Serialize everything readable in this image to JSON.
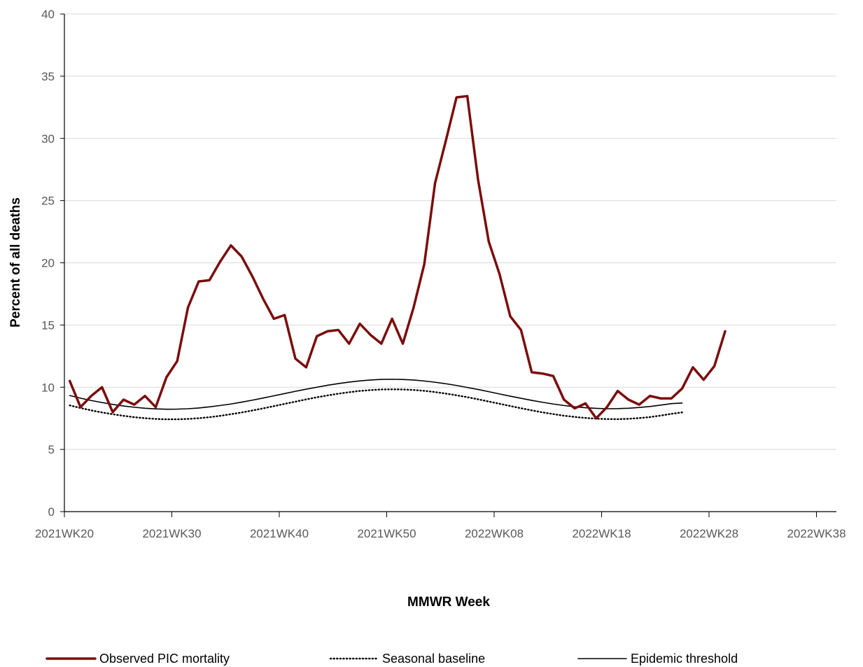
{
  "chart_data": {
    "type": "line",
    "title": "",
    "xlabel": "MMWR Week",
    "ylabel": "Percent of all deaths",
    "x_tick_labels": [
      "2021WK20",
      "2021WK30",
      "2021WK40",
      "2021WK50",
      "2022WK08",
      "2022WK18",
      "2022WK28",
      "2022WK38"
    ],
    "y_ticks": [
      0,
      5,
      10,
      15,
      20,
      25,
      30,
      35,
      40
    ],
    "ylim": [
      0,
      40
    ],
    "grid": "horizontal",
    "legend_position": "bottom",
    "series": [
      {
        "name": "Observed PIC mortality",
        "color": "#7B0C0C",
        "style": "solid-thick",
        "week_index_start": 0.5,
        "values": [
          10.5,
          8.4,
          9.3,
          10.0,
          8.0,
          9.0,
          8.6,
          9.3,
          8.4,
          10.8,
          12.1,
          16.4,
          18.5,
          18.6,
          20.1,
          21.4,
          20.5,
          18.9,
          17.1,
          15.5,
          15.8,
          12.3,
          11.6,
          14.1,
          14.5,
          14.6,
          13.5,
          15.1,
          14.2,
          13.5,
          15.5,
          13.5,
          16.4,
          19.9,
          26.4,
          29.8,
          33.3,
          33.4,
          26.7,
          21.7,
          19.1,
          15.7,
          14.6,
          11.2,
          11.1,
          10.9,
          9.0,
          8.3,
          8.7,
          7.5,
          8.4,
          9.7,
          9.0,
          8.6,
          9.3,
          9.1,
          9.1,
          9.9,
          11.6,
          10.6,
          11.7,
          14.5
        ]
      },
      {
        "name": "Seasonal baseline",
        "color": "#000000",
        "style": "dotted",
        "week_index_start": 0.5,
        "values": [
          8.54,
          8.33,
          8.14,
          7.97,
          7.83,
          7.7,
          7.59,
          7.51,
          7.45,
          7.42,
          7.42,
          7.45,
          7.51,
          7.59,
          7.7,
          7.83,
          7.97,
          8.13,
          8.3,
          8.48,
          8.66,
          8.84,
          9.02,
          9.19,
          9.34,
          9.48,
          9.6,
          9.7,
          9.77,
          9.82,
          9.83,
          9.82,
          9.78,
          9.71,
          9.61,
          9.49,
          9.35,
          9.2,
          9.03,
          8.85,
          8.67,
          8.49,
          8.31,
          8.14,
          7.98,
          7.84,
          7.71,
          7.61,
          7.53,
          7.47,
          7.44,
          7.43,
          7.46,
          7.52,
          7.6,
          7.72,
          7.86,
          7.98
        ]
      },
      {
        "name": "Epidemic threshold",
        "color": "#000000",
        "style": "solid-thin",
        "week_index_start": 0.5,
        "values": [
          9.33,
          9.12,
          8.93,
          8.77,
          8.62,
          8.49,
          8.39,
          8.31,
          8.26,
          8.23,
          8.24,
          8.27,
          8.33,
          8.42,
          8.53,
          8.65,
          8.8,
          8.96,
          9.13,
          9.31,
          9.49,
          9.67,
          9.84,
          10.0,
          10.16,
          10.29,
          10.41,
          10.51,
          10.58,
          10.63,
          10.64,
          10.62,
          10.58,
          10.5,
          10.4,
          10.28,
          10.14,
          9.98,
          9.82,
          9.64,
          9.46,
          9.28,
          9.11,
          8.94,
          8.79,
          8.65,
          8.53,
          8.43,
          8.35,
          8.3,
          8.27,
          8.28,
          8.31,
          8.37,
          8.45,
          8.56,
          8.68,
          8.73
        ]
      }
    ]
  }
}
